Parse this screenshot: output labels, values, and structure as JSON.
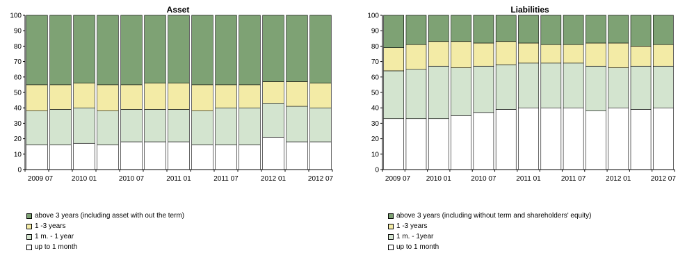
{
  "chart_data": [
    {
      "type": "bar",
      "stacked": true,
      "title": "Asset",
      "categories": [
        "2009 07",
        "2009 10",
        "2010 01",
        "2010 04",
        "2010 07",
        "2010 10",
        "2011 01",
        "2011 04",
        "2011 07",
        "2011 10",
        "2012 01",
        "2012 04",
        "2012 07"
      ],
      "xtick_labels": [
        "2009 07",
        "",
        "2010 01",
        "",
        "2010 07",
        "",
        "2011 01",
        "",
        "2011 07",
        "",
        "2012 01",
        "",
        "2012 07"
      ],
      "ylim": [
        0,
        100
      ],
      "yticks": [
        0,
        10,
        20,
        30,
        40,
        50,
        60,
        70,
        80,
        90,
        100
      ],
      "grid": false,
      "series": [
        {
          "name": "up to 1 month",
          "color": "#ffffff",
          "values": [
            16,
            16,
            17,
            16,
            18,
            18,
            18,
            16,
            16,
            16,
            21,
            18,
            18
          ]
        },
        {
          "name": "1 m. - 1 year",
          "color": "#d3e4cf",
          "values": [
            22,
            23,
            23,
            22,
            21,
            21,
            21,
            22,
            24,
            24,
            22,
            23,
            22
          ]
        },
        {
          "name": "1 -3 years",
          "color": "#f3eba6",
          "values": [
            17,
            16,
            16,
            17,
            16,
            17,
            17,
            17,
            15,
            15,
            14,
            16,
            16
          ]
        },
        {
          "name": "above 3 years (including asset with out the term)",
          "color": "#7ea274",
          "values": [
            45,
            45,
            44,
            45,
            45,
            44,
            44,
            45,
            45,
            45,
            43,
            43,
            44
          ]
        }
      ]
    },
    {
      "type": "bar",
      "stacked": true,
      "title": "Liabilities",
      "categories": [
        "2009 07",
        "2009 10",
        "2010 01",
        "2010 04",
        "2010 07",
        "2010 10",
        "2011 01",
        "2011 04",
        "2011 07",
        "2011 10",
        "2012 01",
        "2012 04",
        "2012 07"
      ],
      "xtick_labels": [
        "2009 07",
        "",
        "2010 01",
        "",
        "2010 07",
        "",
        "2011 01",
        "",
        "2011 07",
        "",
        "2012 01",
        "",
        "2012 07"
      ],
      "ylim": [
        0,
        100
      ],
      "yticks": [
        0,
        10,
        20,
        30,
        40,
        50,
        60,
        70,
        80,
        90,
        100
      ],
      "grid": false,
      "series": [
        {
          "name": "up to 1 month",
          "color": "#ffffff",
          "values": [
            33,
            33,
            33,
            35,
            37,
            39,
            40,
            40,
            40,
            38,
            40,
            39,
            40
          ]
        },
        {
          "name": "1 m. - 1year",
          "color": "#d3e4cf",
          "values": [
            31,
            32,
            34,
            31,
            30,
            29,
            29,
            29,
            29,
            29,
            26,
            28,
            27
          ]
        },
        {
          "name": "1 -3 years",
          "color": "#f3eba6",
          "values": [
            15,
            16,
            16,
            17,
            15,
            15,
            13,
            12,
            12,
            15,
            16,
            13,
            14
          ]
        },
        {
          "name": "above 3 years (including without term and shareholders' equity)",
          "color": "#7ea274",
          "values": [
            21,
            19,
            17,
            17,
            18,
            17,
            18,
            19,
            19,
            18,
            18,
            20,
            19
          ]
        }
      ]
    }
  ],
  "legends": [
    [
      "above 3 years (including asset with out the term)",
      "1 -3 years",
      "1 m. - 1 year",
      "up to 1 month"
    ],
    [
      "above 3 years (including without term and shareholders' equity)",
      "1 -3 years",
      "1 m. - 1year",
      "up to 1 month"
    ]
  ],
  "legend_colors": [
    [
      "#7ea274",
      "#f3eba6",
      "#d3e4cf",
      "#ffffff"
    ],
    [
      "#7ea274",
      "#f3eba6",
      "#d3e4cf",
      "#ffffff"
    ]
  ]
}
